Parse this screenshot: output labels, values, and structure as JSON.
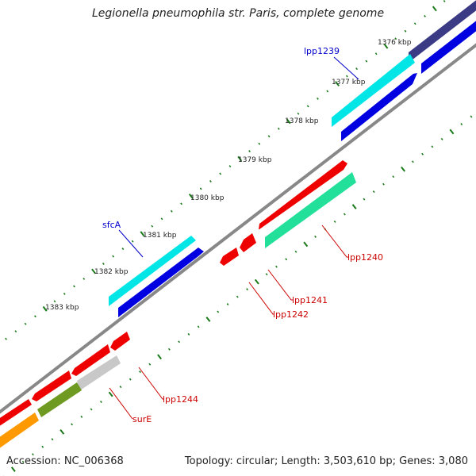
{
  "title": "Legionella pneumophila str. Paris, complete genome",
  "accession": "Accession: NC_006368",
  "topology": "Topology: circular; Length: 3,503,610 bp; Genes: 3,080",
  "ticks": {
    "kbp_1376": "1376 kbp",
    "kbp_1377": "1377 kbp",
    "kbp_1378": "1378 kbp",
    "kbp_1379": "1379 kbp",
    "kbp_1380": "1380 kbp",
    "kbp_1381": "1381 kbp",
    "kbp_1382": "1382 kbp",
    "kbp_1383": "1383 kbp"
  },
  "genes": {
    "lpp1239": "lpp1239",
    "sfcA": "sfcA",
    "lpp1240": "lpp1240",
    "lpp1241": "lpp1241",
    "lpp1242": "lpp1242",
    "lpp1244": "lpp1244",
    "surE": "surE"
  },
  "colors": {
    "forward_label": "#0000cc",
    "reverse_label": "#cc0000",
    "backbone": "#888888",
    "tick": "#1a7a1a",
    "cyan": "#00e5e5",
    "blue": "#0000e0",
    "navy": "#3b3a85",
    "red": "#ee0000",
    "teal": "#22e09a",
    "gray": "#c8c8c8",
    "olive": "#6f9a22",
    "orange": "#ff9900"
  }
}
